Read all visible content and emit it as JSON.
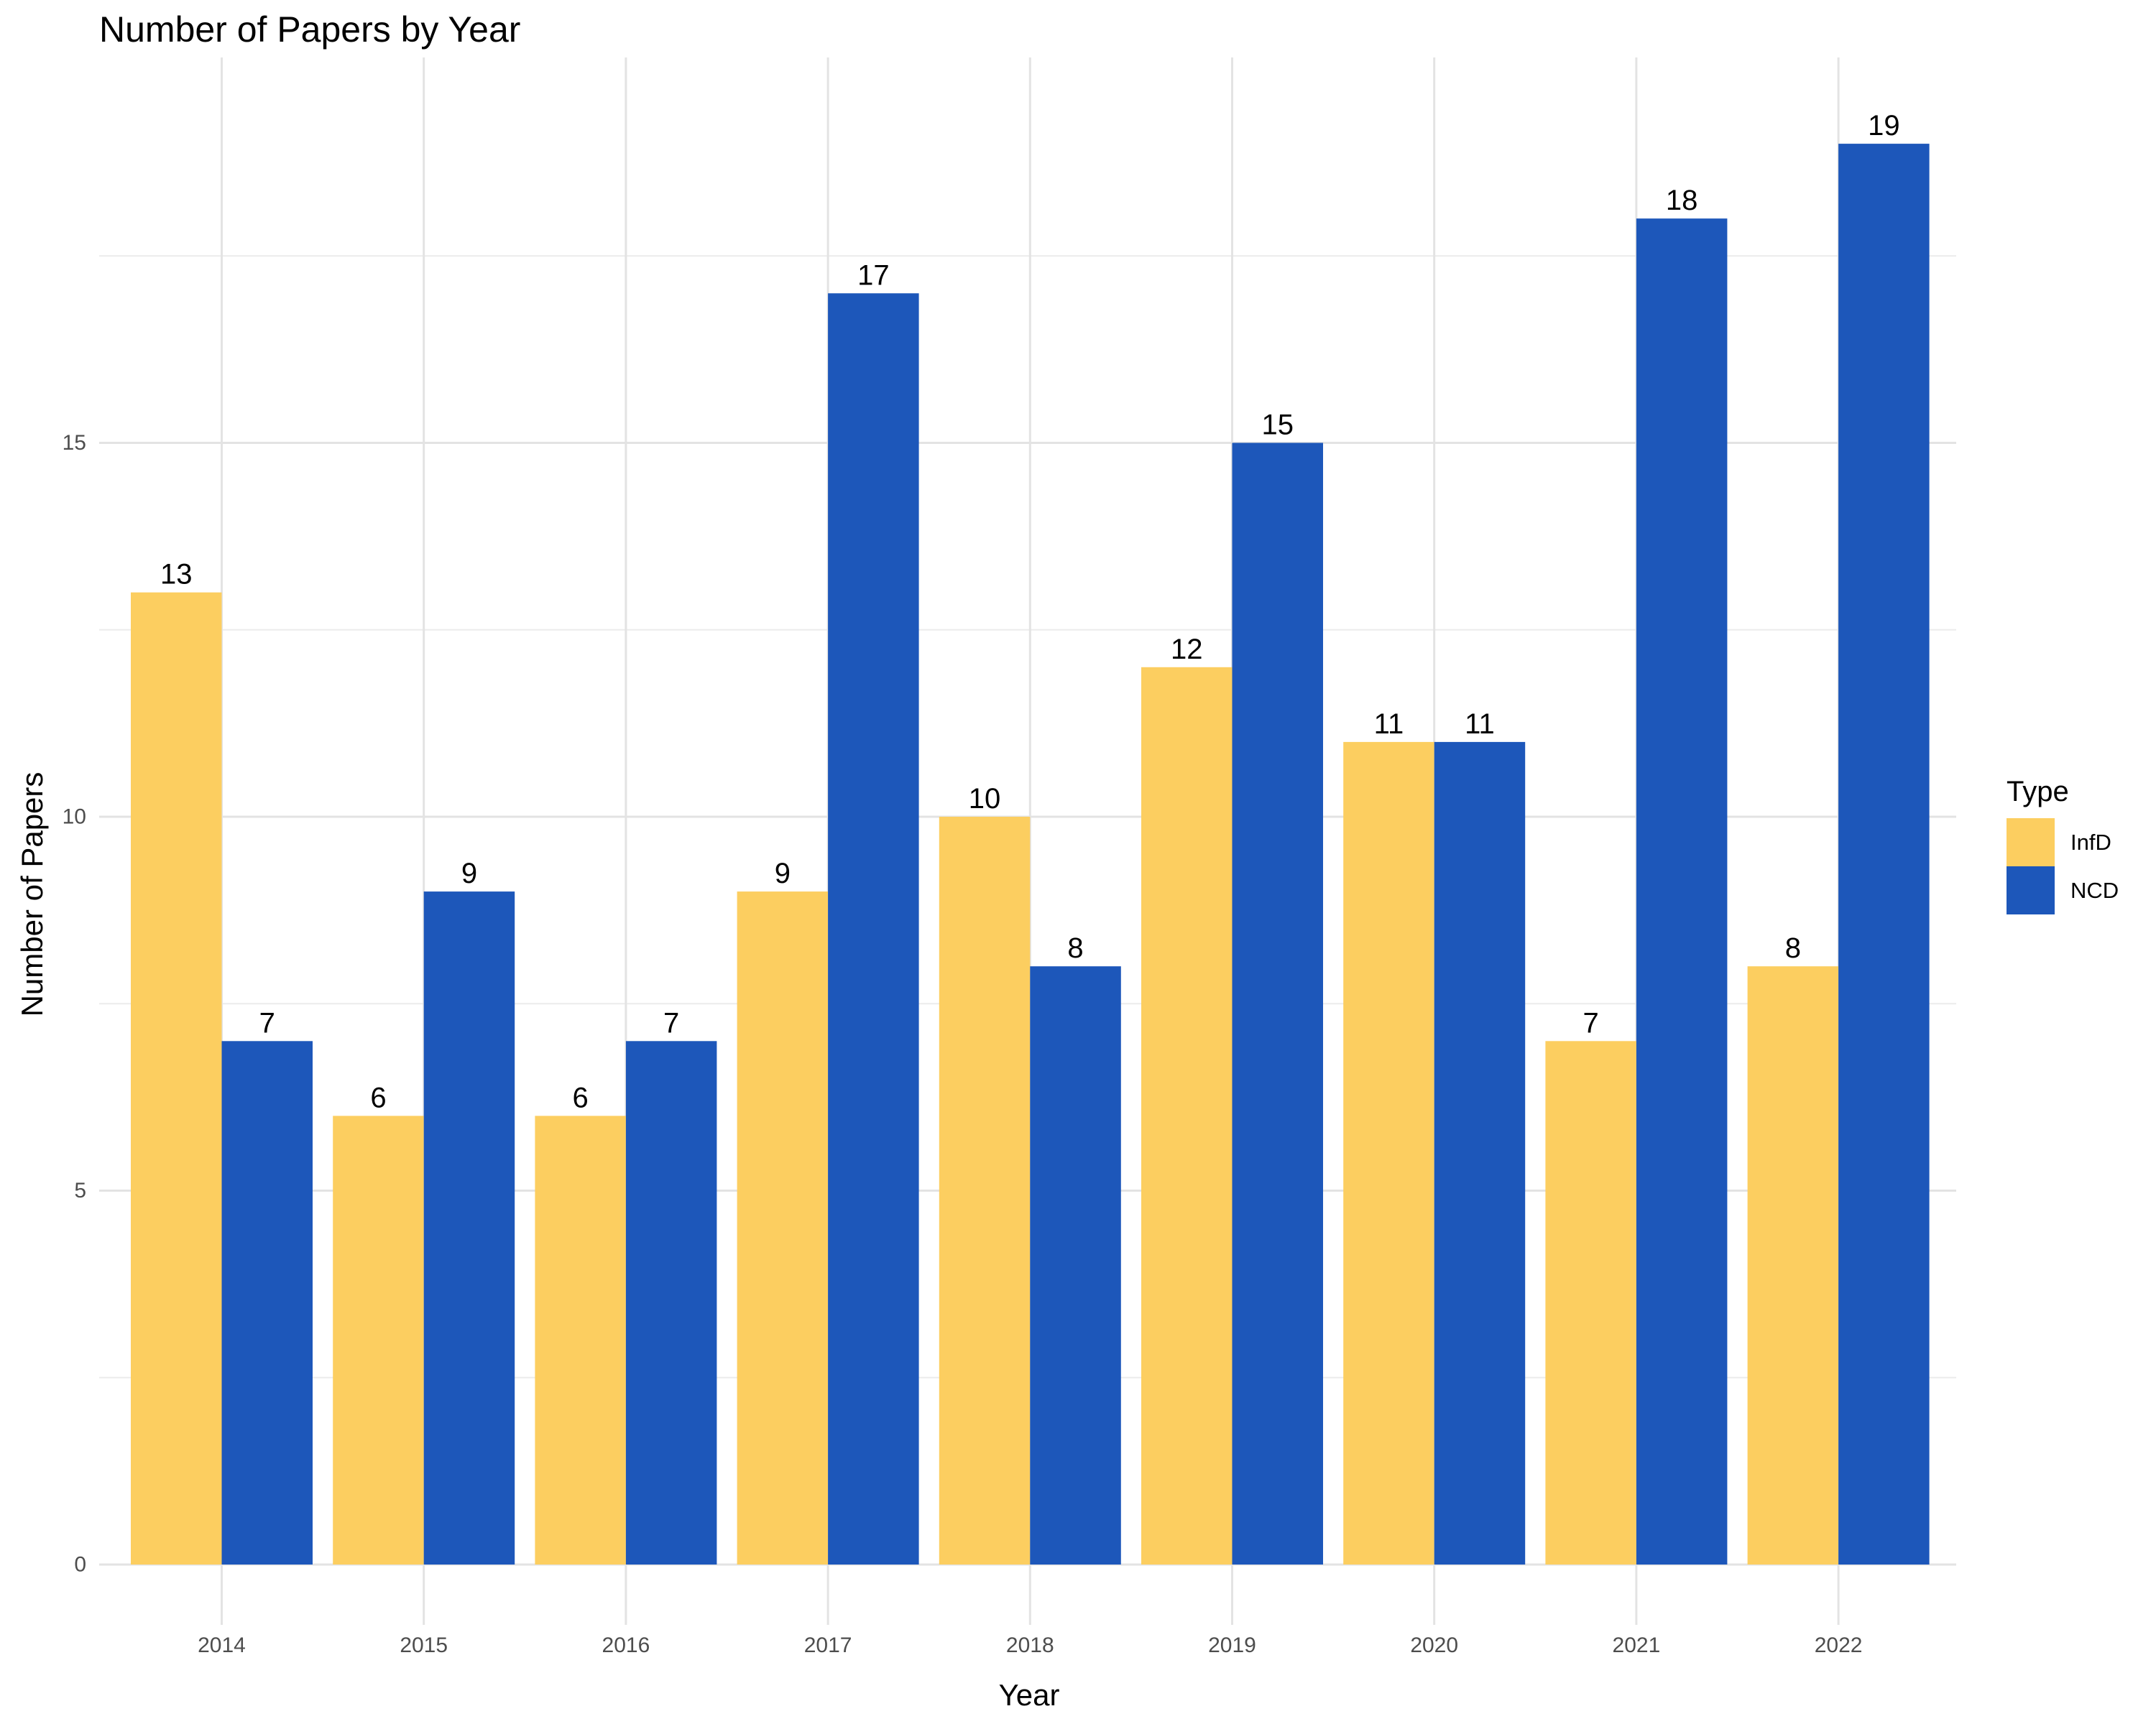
{
  "chart_data": {
    "type": "bar",
    "title": "Number of Papers by Year",
    "xlabel": "Year",
    "ylabel": "Number of Papers",
    "categories": [
      "2014",
      "2015",
      "2016",
      "2017",
      "2018",
      "2019",
      "2020",
      "2021",
      "2022"
    ],
    "series": [
      {
        "name": "InfD",
        "color": "#FCCE60",
        "values": [
          13,
          6,
          6,
          9,
          10,
          12,
          11,
          7,
          8
        ]
      },
      {
        "name": "NCD",
        "color": "#1D57BA",
        "values": [
          7,
          9,
          7,
          17,
          8,
          15,
          11,
          18,
          19
        ]
      }
    ],
    "ylim": [
      0,
      20
    ],
    "yticks": [
      0,
      5,
      10,
      15
    ],
    "grid": true,
    "legend": {
      "title": "Type",
      "position": "right"
    },
    "data_labels": true
  }
}
